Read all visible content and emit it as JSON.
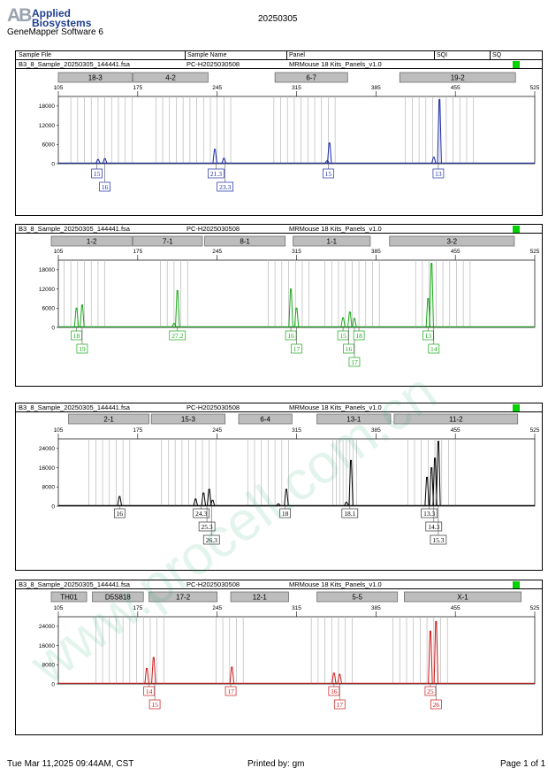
{
  "header": {
    "logo_mark": "AB",
    "logo_line1": "Applied",
    "logo_line2": "Biosystems",
    "software": "GeneMapper Software 6",
    "date": "20250305"
  },
  "columns": {
    "sample_file": "Sample File",
    "sample_name": "Sample Name",
    "panel": "Panel",
    "sqi": "SQI",
    "sq": "SQ"
  },
  "footer": {
    "printed_time": "Tue Mar 11,2025 09:44AM, CST",
    "printed_by": "Printed by: gm",
    "page": "Page 1 of 1"
  },
  "watermark": "www.procell.com.cn",
  "colors": {
    "blue": "#1a2aa8",
    "green": "#18a818",
    "black": "#000000",
    "red": "#c81818",
    "sq_ok": "#00d100"
  },
  "chart_data": [
    {
      "type": "line",
      "sample_file": "B3_8_Sample_20250305_144441.fsa",
      "sample_name": "PC-H2025030508",
      "panel": "MRMouse 18 Kits_Panels_v1.0",
      "xlim": [
        105,
        525
      ],
      "x_ticks": [
        105,
        175,
        245,
        315,
        385,
        455,
        525
      ],
      "y_ticks": [
        0,
        6000,
        12000,
        18000
      ],
      "ylim": [
        0,
        21000
      ],
      "color": "#1a2aa8",
      "markers": [
        {
          "label": "18-3",
          "start": 105,
          "end": 170
        },
        {
          "label": "4-2",
          "start": 171,
          "end": 237
        },
        {
          "label": "6-7",
          "start": 296,
          "end": 360
        },
        {
          "label": "19-2",
          "start": 406,
          "end": 508
        }
      ],
      "peaks": [
        {
          "x": 140,
          "y": 1300
        },
        {
          "x": 146,
          "y": 1600
        },
        {
          "x": 243,
          "y": 4500
        },
        {
          "x": 251,
          "y": 1700
        },
        {
          "x": 344,
          "y": 6500
        },
        {
          "x": 342,
          "y": 900
        },
        {
          "x": 436,
          "y": 2000
        },
        {
          "x": 441,
          "y": 20000
        }
      ],
      "alleles": [
        {
          "label": "15",
          "x": 139,
          "row": 0
        },
        {
          "label": "16",
          "x": 146,
          "row": 1
        },
        {
          "label": "21.3",
          "x": 244,
          "row": 0
        },
        {
          "label": "23.3",
          "x": 252,
          "row": 1
        },
        {
          "label": "15",
          "x": 343,
          "row": 0
        },
        {
          "label": "13",
          "x": 440,
          "row": 0
        }
      ],
      "bins": [
        116,
        122,
        128,
        134,
        140,
        146,
        152,
        158,
        164,
        170,
        191,
        197,
        203,
        209,
        215,
        221,
        227,
        233,
        239,
        245,
        251,
        257,
        295,
        301,
        307,
        313,
        319,
        325,
        331,
        337,
        343,
        349,
        411,
        417,
        423,
        429,
        435,
        441,
        447,
        453,
        459,
        465,
        471
      ]
    },
    {
      "type": "line",
      "sample_file": "B3_8_Sample_20250305_144441.fsa",
      "sample_name": "PC-H2025030508",
      "panel": "MRMouse 18 Kits_Panels_v1.0",
      "xlim": [
        105,
        525
      ],
      "x_ticks": [
        105,
        175,
        245,
        315,
        385,
        455,
        525
      ],
      "y_ticks": [
        0,
        6000,
        12000,
        18000
      ],
      "ylim": [
        0,
        21000
      ],
      "color": "#18a818",
      "markers": [
        {
          "label": "1-2",
          "start": 94,
          "end": 170
        },
        {
          "label": "7-1",
          "start": 171,
          "end": 232
        },
        {
          "label": "8-1",
          "start": 234,
          "end": 305
        },
        {
          "label": "1-1",
          "start": 312,
          "end": 380
        },
        {
          "label": "3-2",
          "start": 397,
          "end": 507
        }
      ],
      "peaks": [
        {
          "x": 121,
          "y": 6000
        },
        {
          "x": 126,
          "y": 7000
        },
        {
          "x": 210,
          "y": 11500
        },
        {
          "x": 207,
          "y": 1200
        },
        {
          "x": 310,
          "y": 12000
        },
        {
          "x": 315,
          "y": 6000
        },
        {
          "x": 356,
          "y": 3000
        },
        {
          "x": 362,
          "y": 4800
        },
        {
          "x": 366,
          "y": 2800
        },
        {
          "x": 431,
          "y": 9000
        },
        {
          "x": 434,
          "y": 20000
        }
      ],
      "alleles": [
        {
          "label": "18",
          "x": 121,
          "row": 0
        },
        {
          "label": "19",
          "x": 126,
          "row": 1
        },
        {
          "label": "27.2",
          "x": 210,
          "row": 0
        },
        {
          "label": "16",
          "x": 310,
          "row": 0
        },
        {
          "label": "17",
          "x": 315,
          "row": 1
        },
        {
          "label": "15",
          "x": 356,
          "row": 0
        },
        {
          "label": "16",
          "x": 361,
          "row": 1
        },
        {
          "label": "17",
          "x": 366,
          "row": 2
        },
        {
          "label": "18",
          "x": 370,
          "row": 0
        },
        {
          "label": "13",
          "x": 431,
          "row": 0
        },
        {
          "label": "14",
          "x": 436,
          "row": 1
        }
      ],
      "bins": [
        110,
        116,
        122,
        128,
        134,
        140,
        146,
        195,
        201,
        207,
        213,
        219,
        290,
        296,
        302,
        308,
        314,
        320,
        326,
        340,
        346,
        352,
        358,
        364,
        370,
        376,
        382,
        388,
        420,
        426,
        432,
        438,
        444,
        450,
        456,
        462,
        468
      ]
    },
    {
      "type": "line",
      "sample_file": "B3_8_Sample_20250305_144441.fsa",
      "sample_name": "PC-H2025030508",
      "panel": "MRMouse 18 Kits_Panels_v1.0",
      "xlim": [
        105,
        525
      ],
      "x_ticks": [
        105,
        175,
        245,
        315,
        385,
        455,
        525
      ],
      "y_ticks": [
        0,
        8000,
        16000,
        24000
      ],
      "ylim": [
        0,
        28000
      ],
      "color": "#000000",
      "markers": [
        {
          "label": "2-1",
          "start": 114,
          "end": 185
        },
        {
          "label": "15-3",
          "start": 187,
          "end": 252
        },
        {
          "label": "6-4",
          "start": 264,
          "end": 311
        },
        {
          "label": "13-1",
          "start": 333,
          "end": 398
        },
        {
          "label": "11-2",
          "start": 401,
          "end": 510
        }
      ],
      "peaks": [
        {
          "x": 159,
          "y": 4000
        },
        {
          "x": 226,
          "y": 3000
        },
        {
          "x": 233,
          "y": 5500
        },
        {
          "x": 238,
          "y": 7000
        },
        {
          "x": 241,
          "y": 2500
        },
        {
          "x": 306,
          "y": 7000
        },
        {
          "x": 299,
          "y": 900
        },
        {
          "x": 363,
          "y": 19000
        },
        {
          "x": 359,
          "y": 1600
        },
        {
          "x": 430,
          "y": 12000
        },
        {
          "x": 434,
          "y": 16000
        },
        {
          "x": 437,
          "y": 20000
        },
        {
          "x": 440,
          "y": 27000
        }
      ],
      "alleles": [
        {
          "label": "16",
          "x": 159,
          "row": 0
        },
        {
          "label": "24.3",
          "x": 231,
          "row": 0
        },
        {
          "label": "25.3",
          "x": 236,
          "row": 1
        },
        {
          "label": "26.3",
          "x": 240,
          "row": 2
        },
        {
          "label": "18",
          "x": 305,
          "row": 0
        },
        {
          "label": "18.1",
          "x": 362,
          "row": 0
        },
        {
          "label": "13.3",
          "x": 432,
          "row": 0
        },
        {
          "label": "14.3",
          "x": 436,
          "row": 1
        },
        {
          "label": "15.3",
          "x": 440,
          "row": 2
        }
      ],
      "bins": [
        132,
        138,
        144,
        150,
        156,
        162,
        168,
        196,
        202,
        208,
        214,
        220,
        226,
        232,
        238,
        244,
        272,
        278,
        284,
        290,
        296,
        302,
        308,
        347,
        350,
        353,
        356,
        359,
        362,
        365,
        368,
        413,
        419,
        425,
        431,
        437,
        443,
        449,
        455
      ]
    },
    {
      "type": "line",
      "sample_file": "B3_8_Sample_20250305_144441.fsa",
      "sample_name": "PC-H2025030508",
      "panel": "MRMouse 18 Kits_Panels_v1.0",
      "xlim": [
        105,
        525
      ],
      "x_ticks": [
        105,
        175,
        245,
        315,
        385,
        455,
        525
      ],
      "y_ticks": [
        0,
        8000,
        16000,
        24000
      ],
      "ylim": [
        0,
        28000
      ],
      "color": "#c81818",
      "markers": [
        {
          "label": "TH01",
          "start": 88,
          "end": 130
        },
        {
          "label": "D5S818",
          "start": 135,
          "end": 180
        },
        {
          "label": "17-2",
          "start": 185,
          "end": 245
        },
        {
          "label": "12-1",
          "start": 257,
          "end": 308
        },
        {
          "label": "5-5",
          "start": 333,
          "end": 404
        },
        {
          "label": "X-1",
          "start": 410,
          "end": 513
        }
      ],
      "peaks": [
        {
          "x": 183,
          "y": 6500
        },
        {
          "x": 189,
          "y": 11000
        },
        {
          "x": 258,
          "y": 7000
        },
        {
          "x": 348,
          "y": 4500
        },
        {
          "x": 353,
          "y": 4000
        },
        {
          "x": 433,
          "y": 22000
        },
        {
          "x": 438,
          "y": 26000
        }
      ],
      "alleles": [
        {
          "label": "14",
          "x": 185,
          "row": 0
        },
        {
          "label": "15",
          "x": 190,
          "row": 1
        },
        {
          "label": "17",
          "x": 257,
          "row": 0
        },
        {
          "label": "16",
          "x": 348,
          "row": 0
        },
        {
          "label": "17",
          "x": 353,
          "row": 1
        },
        {
          "label": "25",
          "x": 433,
          "row": 0
        },
        {
          "label": "26",
          "x": 438,
          "row": 1
        }
      ],
      "bins": [
        138,
        144,
        150,
        156,
        162,
        168,
        174,
        180,
        186,
        192,
        198,
        244,
        250,
        256,
        262,
        268,
        328,
        334,
        340,
        346,
        352,
        358,
        364,
        400,
        406,
        412,
        418,
        424,
        430,
        436,
        442,
        448
      ]
    }
  ]
}
